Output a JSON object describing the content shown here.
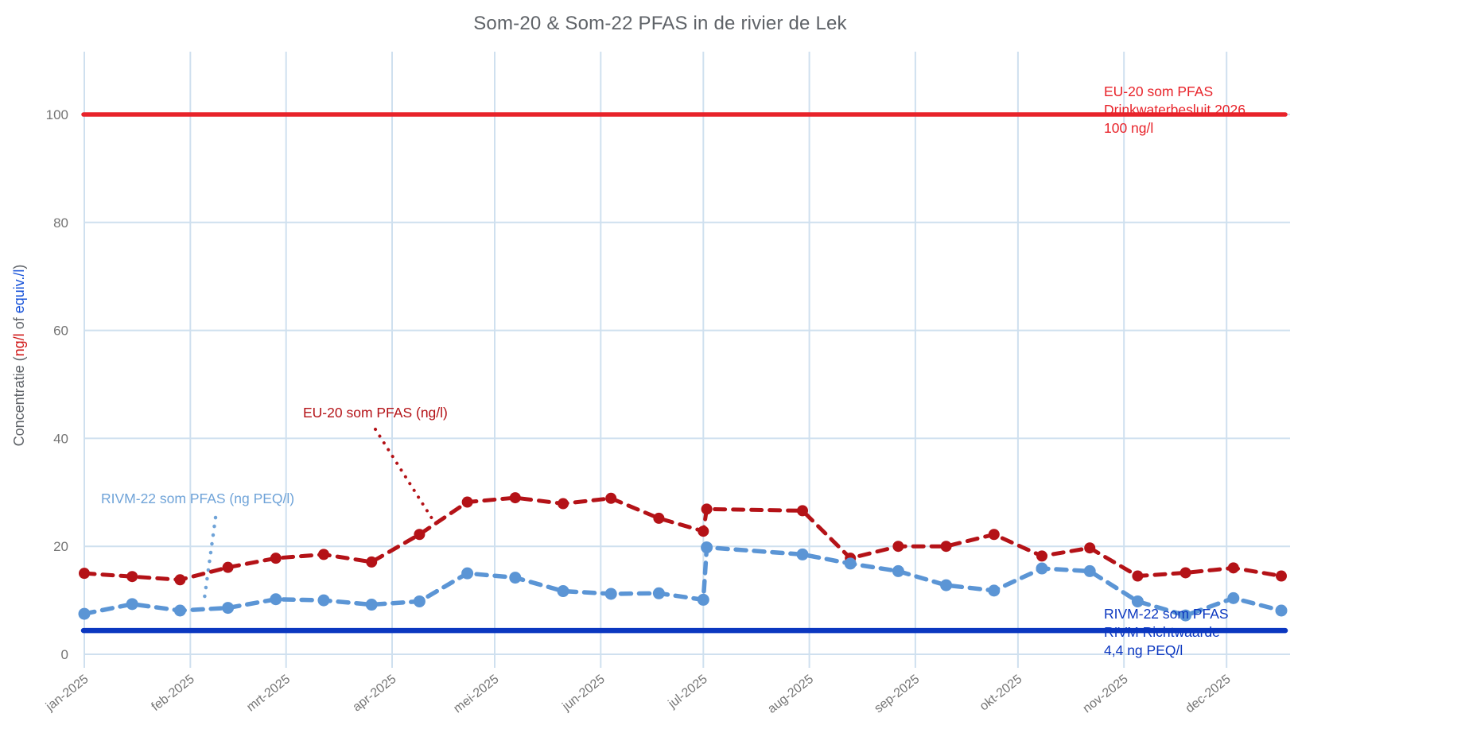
{
  "title": "Som-20 & Som-22 PFAS in de rivier de Lek",
  "y_axis": {
    "title_parts": {
      "prefix": "Concentratie (",
      "red": "ng/l",
      "middle": " of ",
      "blue": "equiv./l",
      "suffix": ")"
    },
    "ticks": [
      0,
      20,
      40,
      60,
      80,
      100
    ]
  },
  "x_axis": {
    "tick_labels": [
      "jan-2025",
      "feb-2025",
      "mrt-2025",
      "apr-2025",
      "mei-2025",
      "jun-2025",
      "jul-2025",
      "aug-2025",
      "sep-2025",
      "okt-2025",
      "nov-2025",
      "dec-2025"
    ]
  },
  "annotations": {
    "eu_series_label": "EU-20 som PFAS (ng/l)",
    "rivm_series_label": "RIVM-22 som PFAS (ng PEQ/l)",
    "eu_limit": {
      "lines": [
        "EU-20 som PFAS",
        "Drinkwaterbesluit 2026",
        "100 ng/l"
      ]
    },
    "rivm_limit": {
      "lines": [
        "RIVM-22 som PFAS",
        "RIVM Richtwaarde",
        "4,4 ng PEQ/l"
      ]
    }
  },
  "colors": {
    "title_gray": "#5f6368",
    "tick_gray": "#757575",
    "gridline": "#cfe0ef",
    "eu_limit_red": "#e8232a",
    "eu_series_red": "#b41217",
    "rivm_limit_blue": "#0b37c0",
    "rivm_series_blue": "#5b95d5",
    "rivm_annotation_blue": "#6fa3d8",
    "ylabel_red": "#d01616",
    "ylabel_blue": "#1652d9"
  },
  "chart_data": {
    "type": "line",
    "title": "Som-20 & Som-22 PFAS in de rivier de Lek",
    "xlabel": "",
    "ylabel": "Concentratie (ng/l of equiv./l)",
    "ylim": [
      0,
      110
    ],
    "grid": true,
    "x_tick_labels": [
      "jan-2025",
      "feb-2025",
      "mrt-2025",
      "apr-2025",
      "mei-2025",
      "jun-2025",
      "jul-2025",
      "aug-2025",
      "sep-2025",
      "okt-2025",
      "nov-2025",
      "dec-2025"
    ],
    "x": [
      "2025-01-01",
      "2025-01-15",
      "2025-01-29",
      "2025-02-12",
      "2025-02-26",
      "2025-03-12",
      "2025-03-26",
      "2025-04-09",
      "2025-04-23",
      "2025-05-07",
      "2025-05-21",
      "2025-06-04",
      "2025-06-18",
      "2025-07-01",
      "2025-07-02",
      "2025-07-30",
      "2025-08-13",
      "2025-08-27",
      "2025-09-10",
      "2025-09-24",
      "2025-10-08",
      "2025-10-22",
      "2025-11-05",
      "2025-11-19",
      "2025-12-03",
      "2025-12-17"
    ],
    "series": [
      {
        "name": "EU-20 som PFAS (ng/l)",
        "color": "#b41217",
        "style": "dashed-with-markers",
        "values": [
          15.0,
          14.4,
          13.8,
          16.1,
          17.8,
          18.5,
          17.1,
          22.2,
          28.2,
          29.0,
          27.9,
          28.9,
          25.2,
          22.8,
          26.9,
          26.6,
          17.8,
          20.0,
          20.0,
          22.2,
          18.2,
          19.7,
          14.5,
          15.1,
          16.0,
          14.5
        ]
      },
      {
        "name": "RIVM-22 som PFAS (ng PEQ/l)",
        "color": "#5b95d5",
        "style": "dashed-with-markers",
        "values": [
          7.5,
          9.3,
          8.1,
          8.6,
          10.2,
          10.0,
          9.2,
          9.8,
          15.0,
          14.2,
          11.7,
          11.2,
          11.3,
          10.1,
          19.8,
          18.5,
          16.8,
          15.4,
          12.8,
          11.8,
          15.9,
          15.4,
          9.8,
          7.2,
          10.4,
          8.1
        ]
      }
    ],
    "reference_lines": [
      {
        "label": "EU-20 som PFAS Drinkwaterbesluit 2026",
        "value": 100,
        "unit": "ng/l",
        "color": "#e8232a"
      },
      {
        "label": "RIVM-22 som PFAS RIVM Richtwaarde",
        "value": 4.4,
        "unit": "ng PEQ/l",
        "color": "#0b37c0"
      }
    ],
    "legend_position": "annotations-on-chart"
  }
}
